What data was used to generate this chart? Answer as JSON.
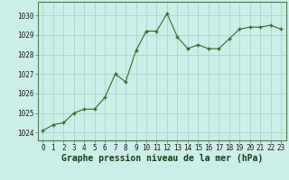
{
  "x": [
    0,
    1,
    2,
    3,
    4,
    5,
    6,
    7,
    8,
    9,
    10,
    11,
    12,
    13,
    14,
    15,
    16,
    17,
    18,
    19,
    20,
    21,
    22,
    23
  ],
  "y": [
    1024.1,
    1024.4,
    1024.5,
    1025.0,
    1025.2,
    1025.2,
    1025.8,
    1027.0,
    1026.6,
    1028.2,
    1029.2,
    1029.2,
    1030.1,
    1028.9,
    1028.3,
    1028.5,
    1028.3,
    1028.3,
    1028.8,
    1029.3,
    1029.4,
    1029.4,
    1029.5,
    1029.3
  ],
  "line_color": "#2d6a2d",
  "marker_color": "#2d6a2d",
  "bg_color": "#cceee8",
  "grid_color": "#aad4ce",
  "xlabel": "Graphe pression niveau de la mer (hPa)",
  "xlabel_fontsize": 7,
  "ylabel_ticks": [
    1024,
    1025,
    1026,
    1027,
    1028,
    1029,
    1030
  ],
  "xlim": [
    -0.5,
    23.5
  ],
  "ylim": [
    1023.6,
    1030.7
  ],
  "xticks": [
    0,
    1,
    2,
    3,
    4,
    5,
    6,
    7,
    8,
    9,
    10,
    11,
    12,
    13,
    14,
    15,
    16,
    17,
    18,
    19,
    20,
    21,
    22,
    23
  ],
  "tick_fontsize": 5.5,
  "ylabel_fontsize": 5.5
}
